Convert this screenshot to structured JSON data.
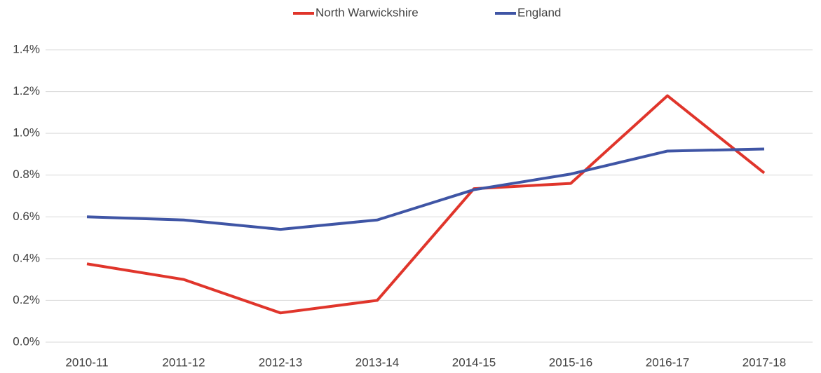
{
  "chart_data": {
    "type": "line",
    "categories": [
      "2010-11",
      "2011-12",
      "2012-13",
      "2013-14",
      "2014-15",
      "2015-16",
      "2016-17",
      "2017-18"
    ],
    "series": [
      {
        "name": "North Warwickshire",
        "color": "#e0352b",
        "values": [
          0.375,
          0.3,
          0.14,
          0.2,
          0.735,
          0.76,
          1.18,
          0.81
        ]
      },
      {
        "name": "England",
        "color": "#3f55a5",
        "values": [
          0.6,
          0.585,
          0.54,
          0.585,
          0.73,
          0.805,
          0.915,
          0.925
        ]
      }
    ],
    "ylim": [
      0,
      1.4
    ],
    "yticks": [
      {
        "value": 0,
        "label": "0.0%"
      },
      {
        "value": 0.2,
        "label": "0.2%"
      },
      {
        "value": 0.4,
        "label": "0.4%"
      },
      {
        "value": 0.6,
        "label": "0.6%"
      },
      {
        "value": 0.8,
        "label": "0.8%"
      },
      {
        "value": 1.0,
        "label": "1.0%"
      },
      {
        "value": 1.2,
        "label": "1.2%"
      },
      {
        "value": 1.4,
        "label": "1.4%"
      }
    ],
    "grid": true,
    "legend": "top"
  }
}
